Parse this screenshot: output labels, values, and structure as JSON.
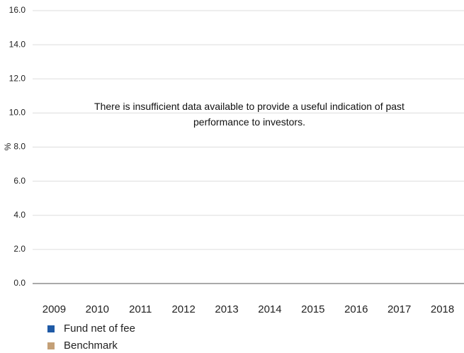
{
  "chart_data": {
    "type": "bar",
    "annotation": "There is insufficient data available to provide a useful indication of past performance to investors.",
    "y_label": "%",
    "categories": [
      "2009",
      "2010",
      "2011",
      "2012",
      "2013",
      "2014",
      "2015",
      "2016",
      "2017",
      "2018"
    ],
    "series": [
      {
        "name": "Fund net of fee",
        "color": "#1f5aa6",
        "values": [
          null,
          null,
          null,
          null,
          null,
          null,
          null,
          null,
          null,
          null
        ]
      },
      {
        "name": "Benchmark",
        "color": "#c4a077",
        "values": [
          null,
          null,
          null,
          null,
          null,
          null,
          null,
          null,
          null,
          null
        ]
      }
    ],
    "ylim": [
      0,
      16
    ],
    "yticks": [
      {
        "value": 0,
        "label": "0.0"
      },
      {
        "value": 2,
        "label": "2.0"
      },
      {
        "value": 4,
        "label": "4.0"
      },
      {
        "value": 6,
        "label": "6.0"
      },
      {
        "value": 8,
        "label": "8.0"
      },
      {
        "value": 10,
        "label": "10.0"
      },
      {
        "value": 12,
        "label": "12.0"
      },
      {
        "value": 14,
        "label": "14.0"
      },
      {
        "value": 16,
        "label": "16.0"
      }
    ],
    "grid": true
  }
}
